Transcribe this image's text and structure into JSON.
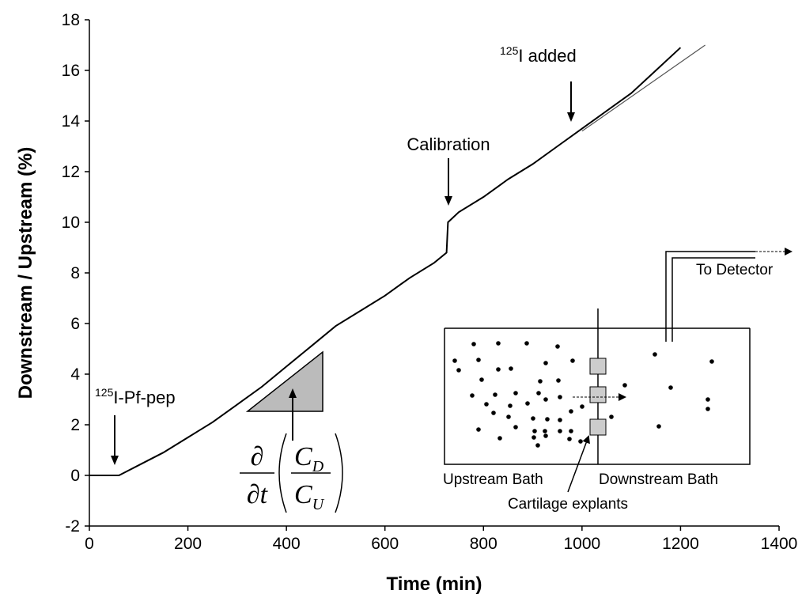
{
  "chart_data": {
    "type": "line",
    "x_label": "Time (min)",
    "y_label": "Downstream / Upstream (%)",
    "x": [
      0,
      30,
      60,
      80,
      100,
      150,
      200,
      250,
      300,
      350,
      400,
      450,
      500,
      550,
      600,
      650,
      700,
      725,
      728,
      750,
      800,
      850,
      900,
      950,
      1000,
      1050,
      1100,
      1150,
      1200
    ],
    "series": [
      {
        "color": "#000000",
        "values": [
          0,
          0,
          0,
          0.2,
          0.4,
          0.9,
          1.5,
          2.1,
          2.8,
          3.5,
          4.3,
          5.1,
          5.9,
          6.5,
          7.1,
          7.8,
          8.4,
          8.8,
          10.0,
          10.4,
          11.0,
          11.7,
          12.3,
          13.0,
          13.7,
          14.4,
          15.1,
          16.0,
          16.9
        ]
      }
    ],
    "fit_line": {
      "color": "#555555",
      "x": [
        1000,
        1250
      ],
      "y": [
        13.6,
        17.0
      ]
    },
    "xlim": [
      0,
      1400
    ],
    "xticks": [
      0,
      200,
      400,
      600,
      800,
      1000,
      1200,
      1400
    ],
    "ylim": [
      -2,
      18
    ],
    "yticks": [
      -2,
      0,
      2,
      4,
      6,
      8,
      10,
      12,
      14,
      16,
      18
    ],
    "annotations": {
      "pep": {
        "sup": "125",
        "text": "I-Pf-pep"
      },
      "calibration": {
        "text": "Calibration"
      },
      "added": {
        "sup": "125",
        "text": "I added"
      }
    },
    "formula": {
      "numerator": "∂",
      "denominator": "∂t",
      "top": "C",
      "top_sub": "D",
      "bottom": "C",
      "bottom_sub": "U"
    },
    "inset": {
      "detector": "To Detector",
      "upstream": "Upstream Bath",
      "downstream": "Downstream Bath",
      "explants": "Cartilage explants"
    }
  }
}
